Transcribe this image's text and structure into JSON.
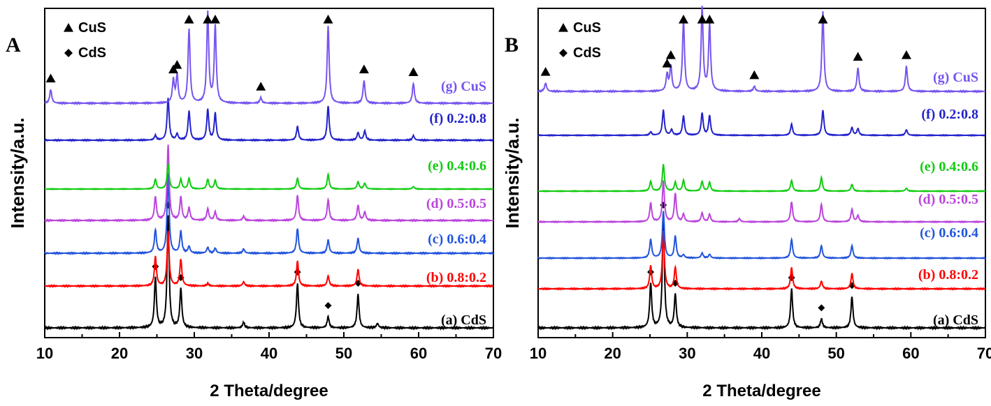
{
  "chart_data": [
    {
      "type": "line",
      "panel": "A",
      "xlabel": "2 Theta/degree",
      "ylabel": "Intensity/a.u.",
      "xlim": [
        10,
        70
      ],
      "xticks": [
        10,
        20,
        30,
        40,
        50,
        60,
        70
      ],
      "grid": false,
      "legend": [
        {
          "symbol": "triangle",
          "label": "CuS"
        },
        {
          "symbol": "diamond",
          "label": "CdS"
        }
      ],
      "legend_position": "top-left",
      "series": [
        {
          "name": "(a) CdS",
          "color": "#000000",
          "peaks": [
            [
              24.8,
              0.45
            ],
            [
              26.5,
              1.0
            ],
            [
              28.2,
              0.35
            ],
            [
              36.6,
              0.05
            ],
            [
              43.8,
              0.4
            ],
            [
              47.9,
              0.1
            ],
            [
              51.9,
              0.3
            ],
            [
              54.5,
              0.04
            ]
          ],
          "markers": [
            {
              "symbol": "diamond",
              "x": [
                24.8,
                26.5,
                28.2,
                43.8,
                47.9,
                51.9
              ]
            }
          ]
        },
        {
          "name": "(b) 0.8:0.2",
          "color": "#ff0000",
          "peaks": [
            [
              24.8,
              0.35
            ],
            [
              26.5,
              0.65
            ],
            [
              28.2,
              0.32
            ],
            [
              31.8,
              0.03
            ],
            [
              36.6,
              0.05
            ],
            [
              43.8,
              0.3
            ],
            [
              47.9,
              0.12
            ],
            [
              51.9,
              0.2
            ]
          ]
        },
        {
          "name": "(c) 0.6:0.4",
          "color": "#2255dd",
          "peaks": [
            [
              24.8,
              0.28
            ],
            [
              26.5,
              0.95
            ],
            [
              28.2,
              0.26
            ],
            [
              29.3,
              0.08
            ],
            [
              31.8,
              0.07
            ],
            [
              32.8,
              0.06
            ],
            [
              36.6,
              0.05
            ],
            [
              43.8,
              0.3
            ],
            [
              47.9,
              0.16
            ],
            [
              51.9,
              0.18
            ]
          ]
        },
        {
          "name": "(d) 0.5:0.5",
          "color": "#bb44dd",
          "peaks": [
            [
              24.8,
              0.28
            ],
            [
              26.5,
              0.9
            ],
            [
              28.2,
              0.28
            ],
            [
              29.3,
              0.15
            ],
            [
              31.8,
              0.14
            ],
            [
              32.8,
              0.1
            ],
            [
              36.6,
              0.05
            ],
            [
              43.8,
              0.3
            ],
            [
              47.9,
              0.25
            ],
            [
              51.9,
              0.18
            ],
            [
              52.8,
              0.1
            ]
          ]
        },
        {
          "name": "(e) 0.4:0.6",
          "color": "#11cc11",
          "peaks": [
            [
              24.8,
              0.2
            ],
            [
              26.5,
              0.52
            ],
            [
              28.2,
              0.2
            ],
            [
              29.3,
              0.22
            ],
            [
              31.8,
              0.2
            ],
            [
              32.8,
              0.18
            ],
            [
              43.8,
              0.22
            ],
            [
              47.9,
              0.3
            ],
            [
              51.9,
              0.15
            ],
            [
              52.8,
              0.12
            ],
            [
              59.3,
              0.05
            ]
          ]
        },
        {
          "name": "(f) 0.2:0.8",
          "color": "#2222cc",
          "peaks": [
            [
              24.8,
              0.06
            ],
            [
              26.5,
              0.55
            ],
            [
              27.7,
              0.08
            ],
            [
              29.3,
              0.38
            ],
            [
              31.8,
              0.4
            ],
            [
              32.8,
              0.35
            ],
            [
              43.8,
              0.18
            ],
            [
              47.9,
              0.45
            ],
            [
              51.9,
              0.1
            ],
            [
              52.8,
              0.12
            ],
            [
              59.3,
              0.06
            ]
          ]
        },
        {
          "name": "(g) CuS",
          "color": "#7755ee",
          "peaks": [
            [
              10.8,
              0.15
            ],
            [
              27.2,
              0.25
            ],
            [
              27.7,
              0.3
            ],
            [
              29.3,
              0.82
            ],
            [
              31.8,
              1.0
            ],
            [
              32.8,
              0.85
            ],
            [
              38.9,
              0.06
            ],
            [
              47.9,
              0.85
            ],
            [
              52.7,
              0.25
            ],
            [
              59.3,
              0.22
            ]
          ],
          "markers": [
            {
              "symbol": "triangle",
              "x": [
                10.8,
                27.2,
                27.7,
                29.3,
                31.8,
                32.8,
                38.9,
                47.9,
                52.7,
                59.3
              ]
            }
          ]
        }
      ]
    },
    {
      "type": "line",
      "panel": "B",
      "xlabel": "2 Theta/degree",
      "ylabel": "Intensity/a.u.",
      "xlim": [
        10,
        70
      ],
      "xticks": [
        10,
        20,
        30,
        40,
        50,
        60,
        70
      ],
      "grid": false,
      "legend": [
        {
          "symbol": "triangle",
          "label": "CuS"
        },
        {
          "symbol": "diamond",
          "label": "CdS"
        }
      ],
      "legend_position": "top-left",
      "series": [
        {
          "name": "(a) CdS",
          "color": "#000000",
          "peaks": [
            [
              25.1,
              0.4
            ],
            [
              26.8,
              1.0
            ],
            [
              28.4,
              0.3
            ],
            [
              44.0,
              0.35
            ],
            [
              48.0,
              0.08
            ],
            [
              52.1,
              0.28
            ]
          ],
          "markers": [
            {
              "symbol": "diamond",
              "x": [
                25.1,
                26.8,
                28.4,
                44.0,
                48.0,
                52.1
              ]
            }
          ]
        },
        {
          "name": "(b) 0.8:0.2",
          "color": "#ff0000",
          "peaks": [
            [
              25.1,
              0.3
            ],
            [
              26.8,
              0.75
            ],
            [
              28.4,
              0.28
            ],
            [
              44.0,
              0.28
            ],
            [
              48.0,
              0.1
            ],
            [
              52.1,
              0.2
            ]
          ]
        },
        {
          "name": "(c) 0.6:0.4",
          "color": "#2255dd",
          "peaks": [
            [
              25.1,
              0.3
            ],
            [
              26.8,
              0.75
            ],
            [
              28.4,
              0.35
            ],
            [
              29.5,
              0.05
            ],
            [
              32.0,
              0.08
            ],
            [
              33.0,
              0.06
            ],
            [
              44.0,
              0.3
            ],
            [
              48.0,
              0.2
            ],
            [
              52.1,
              0.2
            ]
          ]
        },
        {
          "name": "(d) 0.5:0.5",
          "color": "#bb44dd",
          "peaks": [
            [
              25.1,
              0.3
            ],
            [
              26.8,
              0.65
            ],
            [
              28.4,
              0.45
            ],
            [
              29.5,
              0.12
            ],
            [
              32.0,
              0.14
            ],
            [
              33.0,
              0.12
            ],
            [
              37.0,
              0.05
            ],
            [
              44.0,
              0.32
            ],
            [
              48.0,
              0.28
            ],
            [
              52.1,
              0.2
            ],
            [
              52.9,
              0.1
            ]
          ]
        },
        {
          "name": "(e) 0.4:0.6",
          "color": "#11cc11",
          "peaks": [
            [
              25.1,
              0.2
            ],
            [
              26.8,
              0.55
            ],
            [
              28.4,
              0.18
            ],
            [
              29.5,
              0.22
            ],
            [
              32.0,
              0.2
            ],
            [
              33.0,
              0.18
            ],
            [
              44.0,
              0.22
            ],
            [
              48.0,
              0.28
            ],
            [
              52.1,
              0.14
            ],
            [
              59.4,
              0.06
            ]
          ]
        },
        {
          "name": "(f) 0.2:0.8",
          "color": "#2222cc",
          "peaks": [
            [
              25.1,
              0.06
            ],
            [
              26.8,
              0.45
            ],
            [
              27.9,
              0.1
            ],
            [
              29.5,
              0.35
            ],
            [
              32.0,
              0.4
            ],
            [
              33.0,
              0.35
            ],
            [
              44.0,
              0.2
            ],
            [
              48.2,
              0.45
            ],
            [
              52.1,
              0.14
            ],
            [
              52.9,
              0.12
            ],
            [
              59.4,
              0.1
            ]
          ]
        },
        {
          "name": "(g) CuS",
          "color": "#7755ee",
          "peaks": [
            [
              11.0,
              0.1
            ],
            [
              27.3,
              0.2
            ],
            [
              27.8,
              0.3
            ],
            [
              29.5,
              0.85
            ],
            [
              32.0,
              1.0
            ],
            [
              33.0,
              0.8
            ],
            [
              39.0,
              0.06
            ],
            [
              48.2,
              0.95
            ],
            [
              52.9,
              0.28
            ],
            [
              59.4,
              0.3
            ]
          ],
          "markers": [
            {
              "symbol": "triangle",
              "x": [
                11.0,
                27.3,
                27.8,
                29.5,
                32.0,
                33.0,
                39.0,
                48.2,
                52.9,
                59.4
              ]
            }
          ]
        }
      ]
    }
  ]
}
